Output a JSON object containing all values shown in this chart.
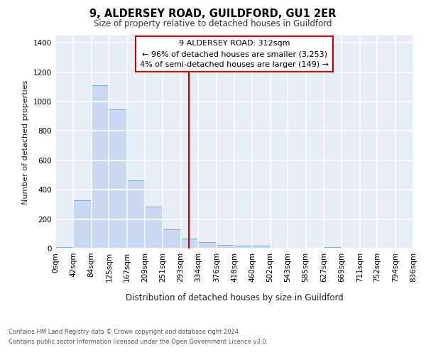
{
  "title1": "9, ALDERSEY ROAD, GUILDFORD, GU1 2ER",
  "title2": "Size of property relative to detached houses in Guildford",
  "xlabel": "Distribution of detached houses by size in Guildford",
  "ylabel": "Number of detached properties",
  "footer1": "Contains HM Land Registry data © Crown copyright and database right 2024.",
  "footer2": "Contains public sector information licensed under the Open Government Licence v3.0.",
  "annotation_title": "9 ALDERSEY ROAD: 312sqm",
  "annotation_line1": "← 96% of detached houses are smaller (3,253)",
  "annotation_line2": "4% of semi-detached houses are larger (149) →",
  "property_size": 312,
  "bar_color": "#c8d8f0",
  "bar_edge_color": "#7aaad4",
  "vline_color": "#cc0000",
  "bg_color": "#ffffff",
  "plot_bg_color": "#e8eef8",
  "grid_color": "#ffffff",
  "bin_edges": [
    0,
    42,
    84,
    125,
    167,
    209,
    251,
    293,
    334,
    376,
    418,
    460,
    502,
    543,
    585,
    627,
    669,
    711,
    752,
    794,
    836
  ],
  "bin_labels": [
    "0sqm",
    "42sqm",
    "84sqm",
    "125sqm",
    "167sqm",
    "209sqm",
    "251sqm",
    "293sqm",
    "334sqm",
    "376sqm",
    "418sqm",
    "460sqm",
    "502sqm",
    "543sqm",
    "585sqm",
    "627sqm",
    "669sqm",
    "711sqm",
    "752sqm",
    "794sqm",
    "836sqm"
  ],
  "counts": [
    10,
    330,
    1110,
    945,
    465,
    285,
    130,
    70,
    45,
    25,
    20,
    20,
    5,
    5,
    0,
    12,
    0,
    0,
    0,
    0
  ],
  "ylim": [
    0,
    1450
  ],
  "yticks": [
    0,
    200,
    400,
    600,
    800,
    1000,
    1200,
    1400
  ]
}
